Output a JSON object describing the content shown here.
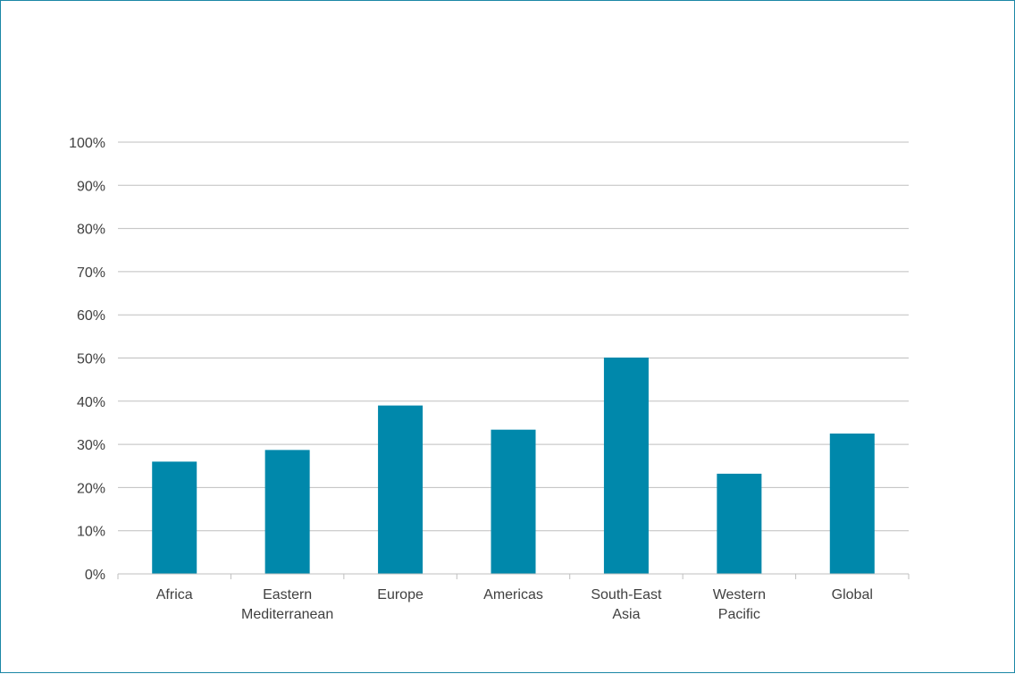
{
  "chart_data": {
    "type": "bar",
    "title": "",
    "xlabel": "",
    "ylabel": "",
    "categories": [
      [
        "Africa"
      ],
      [
        "Eastern",
        "Mediterranean"
      ],
      [
        "Europe"
      ],
      [
        "Americas"
      ],
      [
        "South-East",
        "Asia"
      ],
      [
        "Western",
        "Pacific"
      ],
      [
        "Global"
      ]
    ],
    "values": [
      26,
      28.7,
      39,
      33.4,
      50.1,
      23.2,
      32.5
    ],
    "ylim": [
      0,
      100
    ],
    "yticks": [
      0,
      10,
      20,
      30,
      40,
      50,
      60,
      70,
      80,
      90,
      100
    ],
    "ytick_labels": [
      "0%",
      "10%",
      "20%",
      "30%",
      "40%",
      "50%",
      "60%",
      "70%",
      "80%",
      "90%",
      "100%"
    ],
    "grid": true,
    "legend": "none",
    "colors": {
      "bar": "#0088ab",
      "grid": "#bfbfbf",
      "axis": "#bfbfbf",
      "frame": "#1b87a6",
      "text": "#404040"
    }
  }
}
